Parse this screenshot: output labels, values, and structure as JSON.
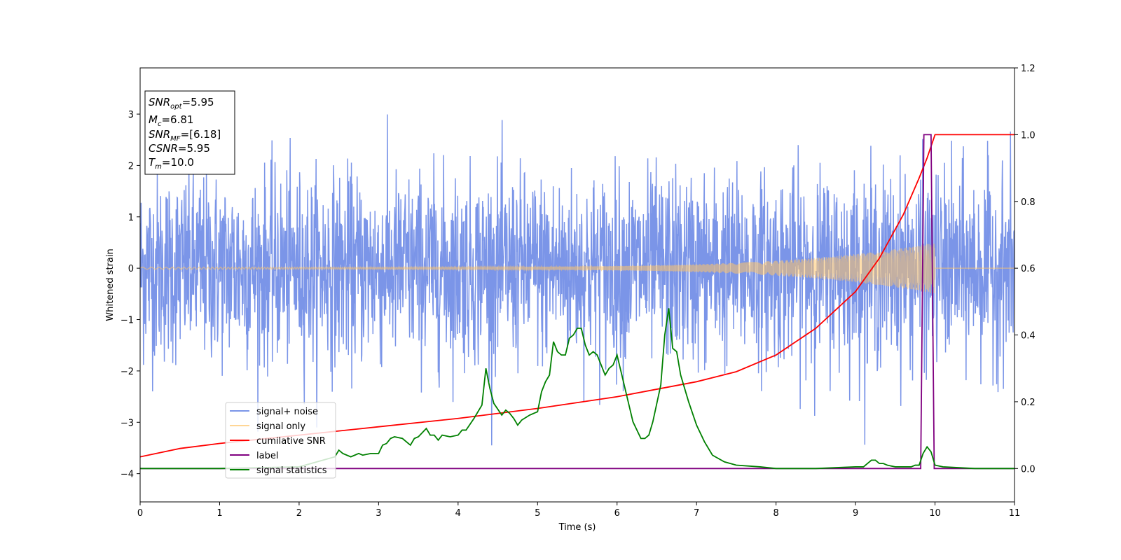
{
  "chart_data": {
    "type": "line",
    "title": "",
    "xlabel": "Time (s)",
    "ylabel": "Whitened strain",
    "y2label": "",
    "xlim": [
      0,
      11
    ],
    "ylim": [
      -4.55,
      3.9
    ],
    "y2lim": [
      -0.1,
      1.2
    ],
    "x_ticks": [
      0,
      1,
      2,
      3,
      4,
      5,
      6,
      7,
      8,
      9,
      10,
      11
    ],
    "y_ticks": [
      -4,
      -3,
      -2,
      -1,
      0,
      1,
      2,
      3
    ],
    "y2_ticks": [
      0.0,
      0.2,
      0.4,
      0.6,
      0.8,
      1.0,
      1.2
    ],
    "grid": false,
    "legend_position": "lower-left",
    "info_box": [
      {
        "base": "SNR",
        "sub": "opt",
        "rest": "=5.95"
      },
      {
        "base": "M",
        "sub": "c",
        "rest": "=6.81"
      },
      {
        "base": "SNR",
        "sub": "MF",
        "rest": "=[6.18]"
      },
      {
        "base": "CSNR",
        "sub": "",
        "rest": "=5.95"
      },
      {
        "base": "T",
        "sub": "m",
        "rest": "=10.0"
      }
    ],
    "series": [
      {
        "name": "signal+ noise",
        "color": "#7b95e8",
        "axis": "left",
        "kind": "noise",
        "x_range": [
          0,
          11
        ],
        "typical_amplitude": 1.6,
        "peak_max": 3.5,
        "peak_min": -3.45
      },
      {
        "name": "signal only",
        "color": "#ffc468",
        "axis": "left",
        "kind": "chirp",
        "x_range": [
          0,
          10
        ],
        "end_amplitude": 0.5
      },
      {
        "name": "cumilative SNR",
        "color": "#ff0000",
        "axis": "right",
        "x": [
          0,
          0.5,
          1,
          2,
          3,
          4,
          5,
          6,
          7,
          7.5,
          8,
          8.5,
          9,
          9.3,
          9.6,
          9.8,
          9.9,
          10.0,
          11
        ],
        "values": [
          0.035,
          0.06,
          0.075,
          0.1,
          0.125,
          0.15,
          0.18,
          0.215,
          0.26,
          0.29,
          0.34,
          0.42,
          0.53,
          0.63,
          0.76,
          0.87,
          0.93,
          1.0,
          1.0
        ]
      },
      {
        "name": "label",
        "color": "#800080",
        "axis": "right",
        "x": [
          0,
          9.82,
          9.86,
          9.95,
          9.99,
          11
        ],
        "values": [
          0,
          0,
          1,
          1,
          0,
          0
        ]
      },
      {
        "name": "signal statistics",
        "color": "#008000",
        "axis": "right",
        "x": [
          0,
          1.0,
          2.0,
          2.3,
          2.45,
          2.5,
          2.55,
          2.65,
          2.75,
          2.8,
          2.9,
          3.0,
          3.05,
          3.1,
          3.15,
          3.2,
          3.3,
          3.4,
          3.45,
          3.5,
          3.6,
          3.65,
          3.7,
          3.75,
          3.8,
          3.9,
          4.0,
          4.05,
          4.1,
          4.2,
          4.3,
          4.35,
          4.4,
          4.45,
          4.55,
          4.6,
          4.65,
          4.7,
          4.75,
          4.8,
          4.9,
          5.0,
          5.05,
          5.1,
          5.15,
          5.2,
          5.25,
          5.3,
          5.35,
          5.4,
          5.45,
          5.5,
          5.55,
          5.6,
          5.65,
          5.7,
          5.75,
          5.8,
          5.85,
          5.9,
          5.95,
          6.0,
          6.1,
          6.2,
          6.3,
          6.35,
          6.4,
          6.45,
          6.55,
          6.6,
          6.65,
          6.7,
          6.75,
          6.8,
          6.9,
          7.0,
          7.1,
          7.2,
          7.35,
          7.5,
          7.8,
          8.0,
          8.5,
          9.0,
          9.1,
          9.15,
          9.2,
          9.25,
          9.3,
          9.35,
          9.4,
          9.5,
          9.6,
          9.7,
          9.75,
          9.8,
          9.85,
          9.9,
          9.95,
          10.0,
          10.1,
          10.5,
          11.0
        ],
        "values": [
          0.0,
          0.0,
          0.005,
          0.025,
          0.035,
          0.055,
          0.045,
          0.035,
          0.045,
          0.04,
          0.045,
          0.045,
          0.07,
          0.075,
          0.09,
          0.095,
          0.09,
          0.07,
          0.09,
          0.095,
          0.12,
          0.1,
          0.1,
          0.085,
          0.1,
          0.095,
          0.1,
          0.115,
          0.115,
          0.15,
          0.19,
          0.3,
          0.24,
          0.195,
          0.16,
          0.175,
          0.165,
          0.15,
          0.13,
          0.145,
          0.16,
          0.17,
          0.23,
          0.26,
          0.28,
          0.38,
          0.35,
          0.34,
          0.34,
          0.39,
          0.4,
          0.42,
          0.42,
          0.37,
          0.34,
          0.35,
          0.34,
          0.31,
          0.28,
          0.3,
          0.31,
          0.34,
          0.24,
          0.14,
          0.09,
          0.09,
          0.1,
          0.14,
          0.25,
          0.4,
          0.48,
          0.36,
          0.35,
          0.28,
          0.2,
          0.13,
          0.08,
          0.04,
          0.02,
          0.01,
          0.005,
          0.0,
          0.0,
          0.005,
          0.005,
          0.015,
          0.025,
          0.025,
          0.015,
          0.015,
          0.01,
          0.005,
          0.005,
          0.005,
          0.01,
          0.01,
          0.045,
          0.065,
          0.05,
          0.01,
          0.005,
          0.0,
          0.0
        ]
      }
    ]
  }
}
